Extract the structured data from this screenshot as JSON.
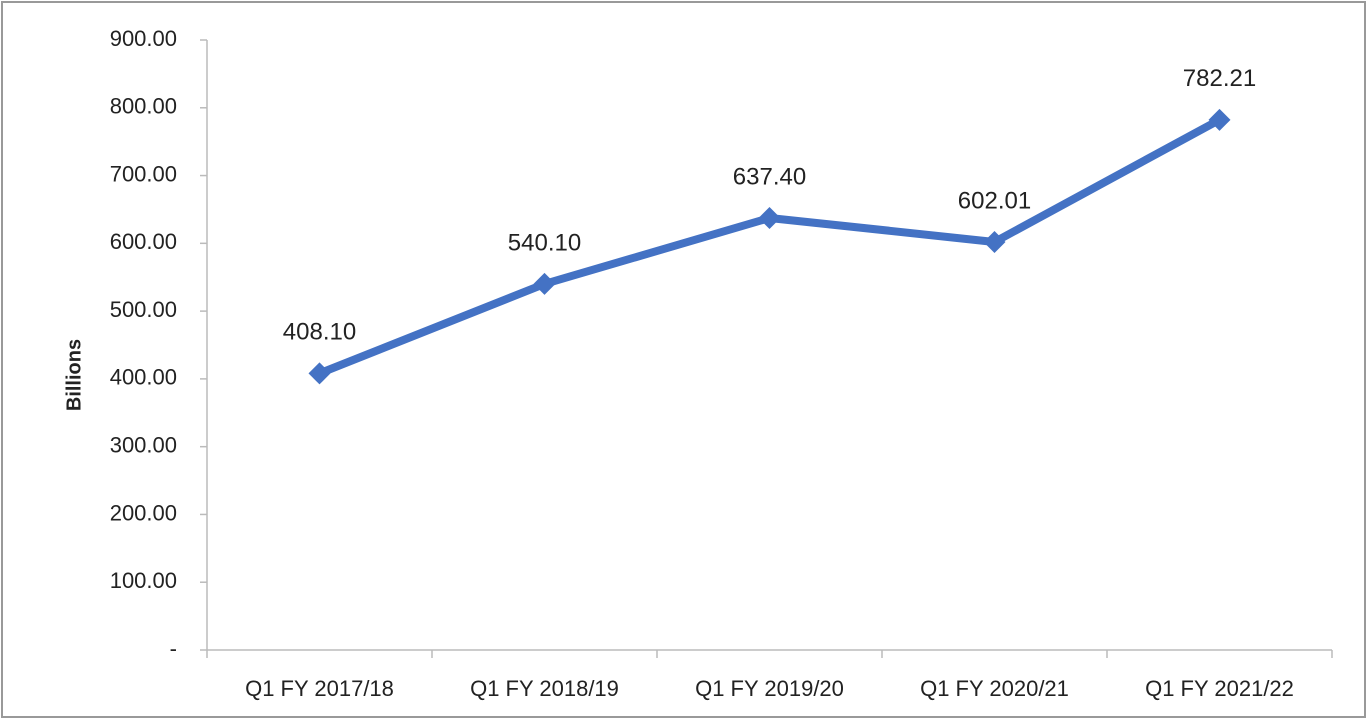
{
  "chart_data": {
    "type": "line",
    "y_axis_label": "Billions",
    "categories": [
      "Q1 FY 2017/18",
      "Q1 FY 2018/19",
      "Q1 FY 2019/20",
      "Q1 FY 2020/21",
      "Q1 FY 2021/22"
    ],
    "values": [
      408.1,
      540.1,
      637.4,
      602.01,
      782.21
    ],
    "value_labels": [
      "408.10",
      "540.10",
      "637.40",
      "602.01",
      "782.21"
    ],
    "color": "#4472c4",
    "ylim": [
      0,
      900
    ],
    "yticks": [
      {
        "value": 0,
        "label": "-"
      },
      {
        "value": 100,
        "label": "100.00"
      },
      {
        "value": 200,
        "label": "200.00"
      },
      {
        "value": 300,
        "label": "300.00"
      },
      {
        "value": 400,
        "label": "400.00"
      },
      {
        "value": 500,
        "label": "500.00"
      },
      {
        "value": 600,
        "label": "600.00"
      },
      {
        "value": 700,
        "label": "700.00"
      },
      {
        "value": 800,
        "label": "800.00"
      },
      {
        "value": 900,
        "label": "900.00"
      }
    ],
    "grid": false
  }
}
